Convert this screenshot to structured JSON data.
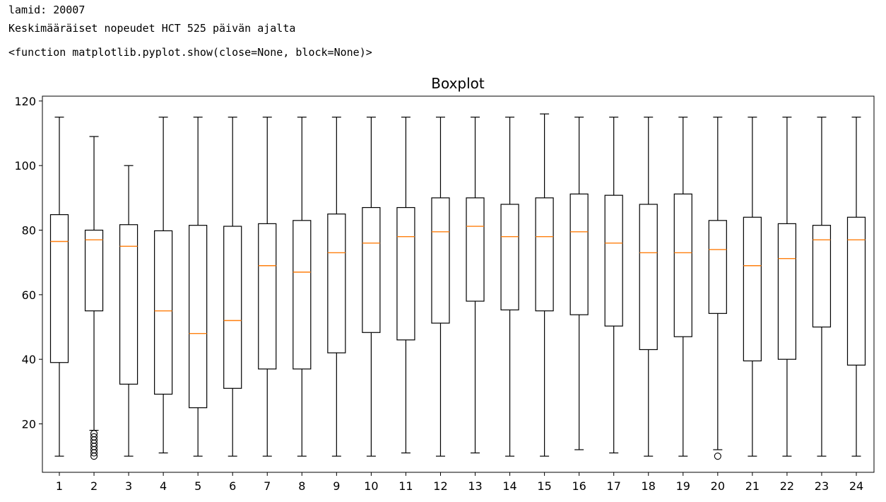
{
  "output": {
    "line1": "lamid: 20007",
    "line2": "Keskimääräiset nopeudet HCT 525 päivän ajalta",
    "line3": "<function matplotlib.pyplot.show(close=None, block=None)>"
  },
  "colors": {
    "box": "#000000",
    "median": "#ff7f0e",
    "background": "#ffffff"
  },
  "chart_data": {
    "type": "boxplot",
    "title": "Boxplot",
    "xlabel": "",
    "ylabel": "",
    "ylim": [
      5,
      121.5
    ],
    "yticks": [
      20,
      40,
      60,
      80,
      100,
      120
    ],
    "categories": [
      "1",
      "2",
      "3",
      "4",
      "5",
      "6",
      "7",
      "8",
      "9",
      "10",
      "11",
      "12",
      "13",
      "14",
      "15",
      "16",
      "17",
      "18",
      "19",
      "20",
      "21",
      "22",
      "23",
      "24"
    ],
    "boxes": [
      {
        "whislo": 10,
        "q1": 39,
        "med": 76.5,
        "q3": 84.8,
        "whishi": 115,
        "fliers": []
      },
      {
        "whislo": 18,
        "q1": 55,
        "med": 77,
        "q3": 80,
        "whishi": 109,
        "fliers": [
          17,
          16,
          15,
          14,
          13,
          12,
          11,
          10
        ]
      },
      {
        "whislo": 10,
        "q1": 32.3,
        "med": 75,
        "q3": 81.7,
        "whishi": 100,
        "fliers": []
      },
      {
        "whislo": 11,
        "q1": 29.2,
        "med": 55,
        "q3": 79.8,
        "whishi": 115,
        "fliers": []
      },
      {
        "whislo": 10,
        "q1": 25,
        "med": 48,
        "q3": 81.5,
        "whishi": 115,
        "fliers": []
      },
      {
        "whislo": 10,
        "q1": 31,
        "med": 52,
        "q3": 81.2,
        "whishi": 115,
        "fliers": []
      },
      {
        "whislo": 10,
        "q1": 37,
        "med": 69,
        "q3": 82,
        "whishi": 115,
        "fliers": []
      },
      {
        "whislo": 10,
        "q1": 37,
        "med": 67,
        "q3": 83,
        "whishi": 115,
        "fliers": []
      },
      {
        "whislo": 10,
        "q1": 42,
        "med": 73,
        "q3": 85,
        "whishi": 115,
        "fliers": []
      },
      {
        "whislo": 10,
        "q1": 48.3,
        "med": 76,
        "q3": 87,
        "whishi": 115,
        "fliers": []
      },
      {
        "whislo": 11,
        "q1": 46,
        "med": 78,
        "q3": 87,
        "whishi": 115,
        "fliers": []
      },
      {
        "whislo": 10,
        "q1": 51.2,
        "med": 79.5,
        "q3": 90,
        "whishi": 115,
        "fliers": []
      },
      {
        "whislo": 11,
        "q1": 58,
        "med": 81.2,
        "q3": 90,
        "whishi": 115,
        "fliers": []
      },
      {
        "whislo": 10,
        "q1": 55.3,
        "med": 78,
        "q3": 88,
        "whishi": 115,
        "fliers": []
      },
      {
        "whislo": 10,
        "q1": 55,
        "med": 78,
        "q3": 90,
        "whishi": 116,
        "fliers": []
      },
      {
        "whislo": 12,
        "q1": 53.8,
        "med": 79.5,
        "q3": 91.2,
        "whishi": 115,
        "fliers": []
      },
      {
        "whislo": 11,
        "q1": 50.3,
        "med": 76,
        "q3": 90.8,
        "whishi": 115,
        "fliers": []
      },
      {
        "whislo": 10,
        "q1": 43,
        "med": 73,
        "q3": 88,
        "whishi": 115,
        "fliers": []
      },
      {
        "whislo": 10,
        "q1": 47,
        "med": 73,
        "q3": 91.2,
        "whishi": 115,
        "fliers": []
      },
      {
        "whislo": 12,
        "q1": 54.2,
        "med": 74,
        "q3": 83,
        "whishi": 115,
        "fliers": [
          10
        ]
      },
      {
        "whislo": 10,
        "q1": 39.5,
        "med": 69,
        "q3": 84,
        "whishi": 115,
        "fliers": []
      },
      {
        "whislo": 10,
        "q1": 40,
        "med": 71.2,
        "q3": 82,
        "whishi": 115,
        "fliers": []
      },
      {
        "whislo": 10,
        "q1": 50,
        "med": 77,
        "q3": 81.5,
        "whishi": 115,
        "fliers": []
      },
      {
        "whislo": 10,
        "q1": 38.2,
        "med": 77,
        "q3": 84,
        "whishi": 115,
        "fliers": []
      }
    ]
  }
}
